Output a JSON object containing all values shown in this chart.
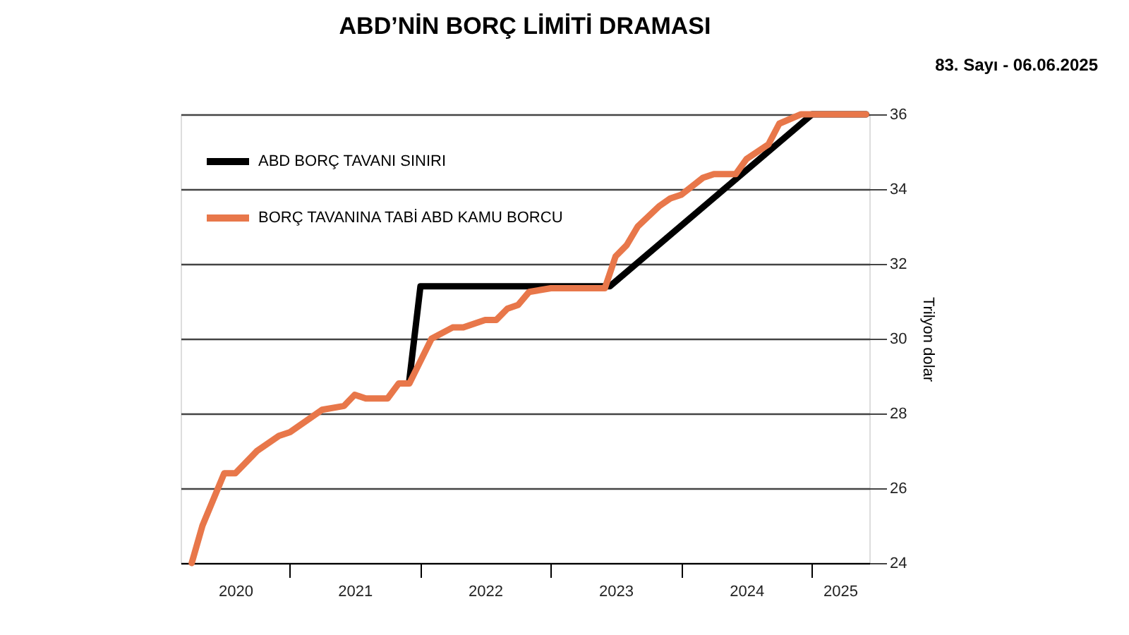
{
  "chart_data": {
    "type": "line",
    "title": "ABD’NİN BORÇ LİMİTİ DRAMASI",
    "ylabel": "Trilyon dolar",
    "annotations": [
      "83. Sayı - 06.06.2025"
    ],
    "xlim": [
      "2020-03",
      "2025-06-10"
    ],
    "xticks": [
      {
        "value": "2020-08",
        "label": "2020"
      },
      {
        "value": "2021-01",
        "label": null
      },
      {
        "value": "2021-07",
        "label": "2021"
      },
      {
        "value": "2022-01",
        "label": null
      },
      {
        "value": "2022-07",
        "label": "2022"
      },
      {
        "value": "2023-01",
        "label": null
      },
      {
        "value": "2023-07",
        "label": "2023"
      },
      {
        "value": "2024-01",
        "label": null
      },
      {
        "value": "2024-07",
        "label": "2024"
      },
      {
        "value": "2025-01",
        "label": null
      },
      {
        "value": "2025-03-20",
        "label": "2025"
      }
    ],
    "ylim": [
      24,
      36
    ],
    "yticks": [
      24,
      26,
      28,
      30,
      32,
      34,
      36
    ],
    "grid": "y",
    "legend": "top left",
    "line_style": "solid",
    "marker": "none",
    "series": [
      {
        "name": "ABD BORÇ TAVANI SINIRI",
        "color": "#000000",
        "x": [
          "2021-12",
          "2022-01",
          "2023-06-15",
          "2025-01",
          "2025-06"
        ],
        "values": [
          28.9,
          31.4,
          31.4,
          36.0,
          36.0
        ]
      },
      {
        "name": "BORÇ TAVANINA TABİ ABD KAMU BORCU",
        "color": "#e8774a",
        "x": [
          "2020-04",
          "2020-05",
          "2020-07",
          "2020-08",
          "2020-10",
          "2020-12",
          "2021-01",
          "2021-04",
          "2021-06",
          "2021-07",
          "2021-08",
          "2021-10",
          "2021-11",
          "2021-12",
          "2022-01",
          "2022-02",
          "2022-04",
          "2022-05",
          "2022-07",
          "2022-08",
          "2022-09",
          "2022-10",
          "2022-11",
          "2023-01",
          "2023-06",
          "2023-07",
          "2023-08",
          "2023-09",
          "2023-11",
          "2023-12",
          "2024-01",
          "2024-03",
          "2024-04",
          "2024-06",
          "2024-07",
          "2024-09",
          "2024-10",
          "2024-12",
          "2025-06"
        ],
        "values": [
          24.0,
          25.0,
          26.4,
          26.4,
          27.0,
          27.4,
          27.5,
          28.1,
          28.2,
          28.5,
          28.4,
          28.4,
          28.8,
          28.8,
          29.4,
          30.0,
          30.3,
          30.3,
          30.5,
          30.5,
          30.8,
          30.9,
          31.25,
          31.35,
          31.35,
          32.2,
          32.5,
          33.0,
          33.55,
          33.75,
          33.85,
          34.3,
          34.4,
          34.4,
          34.8,
          35.2,
          35.75,
          36.0,
          36.0
        ]
      }
    ]
  }
}
